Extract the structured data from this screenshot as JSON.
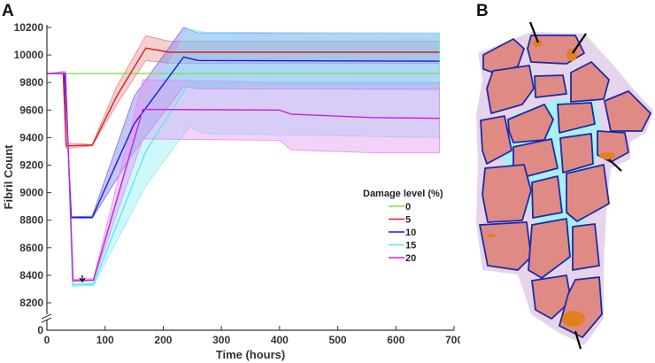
{
  "panel_a_label": "A",
  "panel_b_label": "B",
  "chart_data": {
    "type": "line",
    "title": "",
    "xlabel": "Time (hours)",
    "ylabel": "Fibril Count",
    "xlim": [
      0,
      700
    ],
    "ylim": [
      8200,
      10200
    ],
    "axis_break": true,
    "x_ticks": [
      0,
      100,
      200,
      300,
      400,
      500,
      600,
      700
    ],
    "y_ticks": [
      0,
      8200,
      8400,
      8600,
      8800,
      9000,
      9200,
      9400,
      9600,
      9800,
      10000,
      10200
    ],
    "grid": false,
    "legend_title": "Damage level (%)",
    "legend_position": "center-right",
    "annotation": "down-arrow at ~60 h marking 20% minimum",
    "series": [
      {
        "name": "0",
        "color": "#7fe04a",
        "band": "#7fe04a",
        "t": [
          0,
          675
        ],
        "mean": [
          9865,
          9865
        ],
        "lower": [
          9865,
          9865
        ],
        "upper": [
          9865,
          9865
        ]
      },
      {
        "name": "5",
        "color": "#d62020",
        "band": "#e88a8a",
        "t": [
          0,
          28,
          33,
          78,
          120,
          170,
          210,
          675
        ],
        "mean": [
          9865,
          9865,
          9340,
          9345,
          9700,
          10050,
          10020,
          10020
        ],
        "lower": [
          9865,
          9865,
          9320,
          9340,
          9640,
          9960,
          9940,
          9940
        ],
        "upper": [
          9865,
          9880,
          9360,
          9350,
          9770,
          10140,
          10100,
          10100
        ]
      },
      {
        "name": "10",
        "color": "#1a1ae0",
        "band": "#7070f0",
        "t": [
          0,
          30,
          42,
          78,
          150,
          235,
          260,
          675
        ],
        "mean": [
          9865,
          9865,
          8820,
          8820,
          9500,
          9985,
          9960,
          9955
        ],
        "lower": [
          9865,
          9865,
          8815,
          8815,
          9300,
          9770,
          9755,
          9750
        ],
        "upper": [
          9865,
          9880,
          8825,
          8830,
          9700,
          10200,
          10160,
          10160
        ]
      },
      {
        "name": "15",
        "color": "#5fe8ee",
        "band": "#86eef4",
        "t": [
          0,
          32,
          44,
          80,
          170,
          245,
          270,
          675
        ],
        "mean": [
          9865,
          9865,
          8330,
          8335,
          9300,
          9800,
          9790,
          9790
        ],
        "lower": [
          9865,
          9865,
          8320,
          8325,
          9050,
          9480,
          9430,
          9400
        ],
        "upper": [
          9865,
          9880,
          8340,
          8345,
          9650,
          10190,
          10165,
          10160
        ]
      },
      {
        "name": "20",
        "color": "#d21ee0",
        "band": "#e48cf0",
        "t": [
          0,
          32,
          45,
          80,
          165,
          400,
          420,
          560,
          675
        ],
        "mean": [
          9865,
          9865,
          8360,
          8365,
          9605,
          9600,
          9570,
          9545,
          9540
        ],
        "lower": [
          9865,
          9865,
          8355,
          8360,
          9390,
          9380,
          9310,
          9290,
          9290
        ],
        "upper": [
          9865,
          9880,
          8370,
          8375,
          9820,
          9800,
          9800,
          9800,
          9800
        ]
      }
    ]
  }
}
